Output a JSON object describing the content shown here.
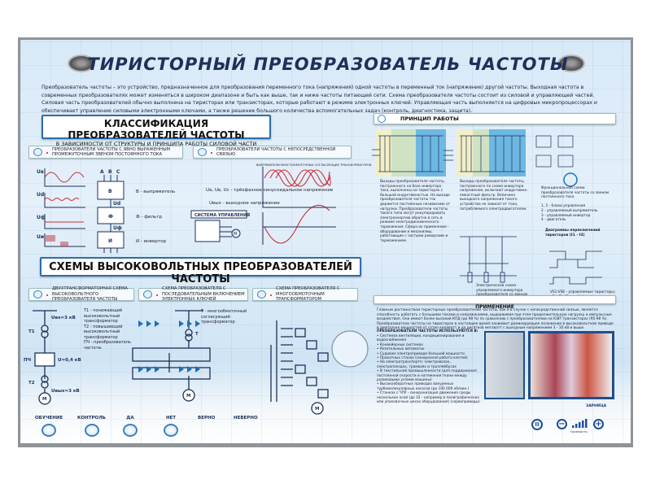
{
  "title": "ТИРИСТОРНЫЙ ПРЕОБРАЗОВАТЕЛЬ ЧАСТОТЫ",
  "intro": "Преобразователь частоты – это устройство, предназначенное для преобразования переменного тока (напряжения) одной частоты в переменный ток (напряжение) другой частоты. Выходная частота в современных преобразователях может изменяться в широком диапазоне и быть как выше, так и ниже частоты питающей сети. Схема преобразователя частоты состоит из силовой и управляющей частей. Силовая часть преобразователей обычно выполнена на тиристорах или транзисторах, которые работают в режиме электронных ключей. Управляющая часть выполняется на цифровых микропроцессорах и обеспечивает управление силовыми электронными ключами, а также решение большого количества вспомогательных задач (контроль, диагностика, защита).",
  "classification": {
    "title": "КЛАССИФИКАЦИЯ ПРЕОБРАЗОВАТЕЛЕЙ ЧАСТОТЫ",
    "subtitle": "В ЗАВИСИМОСТИ ОТ СТРУКТУРЫ И ПРИНЦИПА РАБОТЫ СИЛОВОЙ ЧАСТИ",
    "items": [
      "ПРЕОБРАЗОВАТЕЛИ ЧАСТОТЫ С ЯВНО ВЫРАЖЕННЫМ ПРОМЕЖУТОЧНЫМ ЗВЕНОМ ПОСТОЯННОГО ТОКА",
      "ПРЕОБРАЗОВАТЕЛИ ЧАСТОТЫ С НЕПОСРЕДСТВЕННОЙ СВЯЗЬЮ"
    ],
    "legend": [
      "В - выпрямитель",
      "Ф - фильтр",
      "И - инвертор"
    ],
    "blocks": [
      "В",
      "Ud",
      "Ф",
      "Uф",
      "И"
    ],
    "phases_in": [
      "A",
      "B",
      "C"
    ],
    "phases_out": [
      "U",
      "V",
      "W"
    ],
    "graph_labels": [
      "Uв",
      "Ud",
      "Uф",
      "Uи",
      "t"
    ],
    "direct": {
      "caption": "ВЫПРЯМИТЕЛИ МНОГООБМОТОЧНЫХ СОГЛАСУЮЩИХ ТРАНСФОРМАТОРОВ",
      "desc1": "Uа, Uв, Uс - трёхфазное синусоидальное напряжение",
      "desc2": "Uвых - выходное напряжение",
      "control": "СИСТЕМА УПРАВЛЕНИЯ",
      "phase_labels": [
        "Uа",
        "Uв",
        "Uс"
      ],
      "out_label": "Uвых",
      "motor": "M"
    }
  },
  "hv": {
    "title": "СХЕМЫ ВЫСОКОВОЛЬТНЫХ ПРЕОБРАЗОВАТЕЛЕЙ ЧАСТОТЫ",
    "items": [
      "ДВУХТРАНСФОРМАТОРНАЯ СХЕМА ВЫСОКОВОЛЬТНОГО ПРЕОБРАЗОВАТЕЛЯ ЧАСТОТЫ",
      "СХЕМА ПРЕОБРАЗОВАТЕЛЯ С ПОСЛЕДОВАТЕЛЬНЫМ ВКЛЮЧЕНИЕМ ЭЛЕКТРОННЫХ КЛЮЧЕЙ",
      "СХЕМА ПРЕОБРАЗОВАТЕЛЯ С МНОГООБМОТОЧНЫМ ТРАНСФОРМАТОРОМ"
    ],
    "legend1": [
      "Т1 - понижающий высоковольтный трансформатор",
      "Т2 - повышающий высоковольтный трансформатор",
      "ПЧ - преобразователь частоты"
    ],
    "legend2": "Т - многообмоточный согласующий трансформатор",
    "labels": {
      "uin": "Uвх=3 кВ",
      "t1": "Т1",
      "pch": "ПЧ",
      "u04": "U=0,4 кВ",
      "t2": "Т2",
      "uout": "Uвых=3 кВ",
      "t": "Т",
      "m": "M"
    }
  },
  "buttons": [
    "ОБУЧЕНИЕ",
    "КОНТРОЛЬ",
    "ДА",
    "НЕТ",
    "ВЕРНО",
    "НЕВЕРНО"
  ],
  "principle": {
    "title": "ПРИНЦИП РАБОТЫ",
    "text1": "Выходы преобразователя частоты, построенного на базе инвертора тока, выполнены на тиристорах с большой индуктивностью. На выходе преобразователя частоты ток держится постоянным независимо от нагрузки. Преобразователи частоты такого типа могут рекуперировать электроэнергию обратно в сеть в режиме электродинамического торможения. Сфера их применения - оборудование и механизмы, работающие с частыми реверсами и торможением.",
    "text2": "Выходы преобразователя частоты, построенного по схеме инвертора напряжения, включают индуктивно-емкостный фильтр. Величина выходного напряжения такого устройства не зависит от тока, потребляемого электродвигателем.",
    "func_caption": "Функциональная схема преобразователя частоты со звеном постоянного тока",
    "func_legend": [
      "1, 5 - блоки управления",
      "2 - управляемый выпрямитель",
      "3 - управляемый инвертор",
      "4 - двигатель"
    ],
    "inverter_caption": "Электрическая схема управляемого инвертора преобразователя со звеном постоянного тока",
    "diagram_caption": "Диаграммы переключений тиристоров (t1 - t3)",
    "diagram_legend": "VS1-VS6 - управляемые тиристоры; Zа, Zв, Zс - трёхфазная нагрузка"
  },
  "application": {
    "title": "ПРИМЕНЕНИЕ",
    "text": "Главным достоинством тиристорных преобразователей частоты, как и в случае с непосредственной связью, является способность работать с большими токами и напряжениями, выдерживая при этом продолжительную нагрузку и импульсные воздействия. Они имеют более высокий КПД (до 98 %) по сравнению с преобразователями на IGBT транзисторах (95-98 %). Преобразователи частоты на тиристорах в настоящее время занимают доминирующее положение в высоковольтном приводе в диапазоне мощностей от сотен киловатт и до десятков мегаватт с выходным напряжением 3 - 10 кВ и выше.",
    "list_title": "ПРЕОБРАЗОВАТЕЛИ ЧАСТОТЫ ИСПОЛЬЗУЮТСЯ В:",
    "list": [
      "Системах вентиляции, кондиционирования и водоснабжения",
      "Конвейерных системах",
      "Резательных автоматах",
      "Судовом электроприводе большой мощности",
      "Прокатных станах (синхронная работа клетей)",
      "На электротранспорте: электровозах, электропоездах, трамваях и троллейбусах",
      "В текстильной промышленности (для поддержания постоянной скорости и натяжения ткани между роликовыми узлами машины)",
      "Высокооборотных приводах вакуумных турбомолекулярных насосов (до 100 000 об/мин.)",
      "Станках с ЧПУ - синхронизация движения среды нескольких осей (до 32 - например в полиграфических или упаковочных цехах оборудования) (сервоприводы)"
    ],
    "brand": "ЗАРНИЦА"
  },
  "controls": {
    "volume_label": "громкость",
    "volume_level": 5,
    "volume_max": 5
  },
  "colors": {
    "navy": "#1e2f58",
    "accent": "#2d6ea8",
    "wave": "#c8303a",
    "rectifier": "#f3efc6",
    "link": "#cfe3c4",
    "inverter": "#6db8e2"
  }
}
